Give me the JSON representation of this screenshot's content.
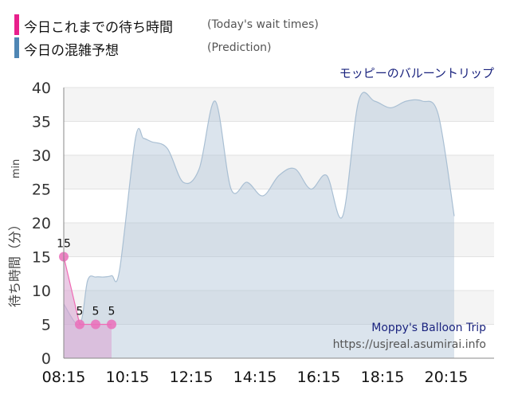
{
  "legend": [
    {
      "label": "今日これまでの待ち時間",
      "sub": "(Today's wait times)",
      "color": "#e8208c"
    },
    {
      "label": "今日の混雑予想",
      "sub": "(Prediction)",
      "color": "#4f86b4"
    }
  ],
  "chart_data": {
    "type": "area",
    "title": "モッピーのバルーントリップ",
    "ylabel": "待ち時間（分）",
    "ylabel_unit": "min",
    "ylim": [
      0,
      40
    ],
    "yticks": [
      0,
      5,
      10,
      15,
      20,
      25,
      30,
      35,
      40
    ],
    "xticks": [
      "08:15",
      "10:15",
      "12:15",
      "14:15",
      "16:15",
      "18:15",
      "20:15"
    ],
    "xrange": [
      "08:15",
      "21:45"
    ],
    "grid": true,
    "series": [
      {
        "name": "今日の混雑予想",
        "color": "#a9bfd3",
        "points": [
          [
            "08:15",
            8
          ],
          [
            "08:45",
            5
          ],
          [
            "09:00",
            11.5
          ],
          [
            "09:15",
            12
          ],
          [
            "09:30",
            12
          ],
          [
            "09:45",
            12.2
          ],
          [
            "10:00",
            13
          ],
          [
            "10:30",
            32.5
          ],
          [
            "10:45",
            32.5
          ],
          [
            "11:00",
            32
          ],
          [
            "11:30",
            31
          ],
          [
            "12:00",
            26
          ],
          [
            "12:30",
            28
          ],
          [
            "13:00",
            38
          ],
          [
            "13:30",
            25
          ],
          [
            "14:00",
            26
          ],
          [
            "14:30",
            24
          ],
          [
            "15:00",
            27
          ],
          [
            "15:30",
            28
          ],
          [
            "16:00",
            25
          ],
          [
            "16:30",
            27
          ],
          [
            "17:00",
            21
          ],
          [
            "17:30",
            38
          ],
          [
            "18:00",
            38
          ],
          [
            "18:30",
            37
          ],
          [
            "19:00",
            38
          ],
          [
            "19:30",
            38
          ],
          [
            "20:00",
            36
          ],
          [
            "20:30",
            21
          ]
        ]
      },
      {
        "name": "今日これまでの待ち時間",
        "color": "#e8208c",
        "points": [
          [
            "08:15",
            15
          ],
          [
            "08:45",
            5
          ],
          [
            "09:15",
            5
          ],
          [
            "09:45",
            5
          ]
        ],
        "labels": [
          "15",
          "5",
          "5",
          "5"
        ]
      }
    ],
    "watermark": [
      "Moppy's Balloon Trip",
      "https://usjreal.asumirai.info"
    ]
  }
}
